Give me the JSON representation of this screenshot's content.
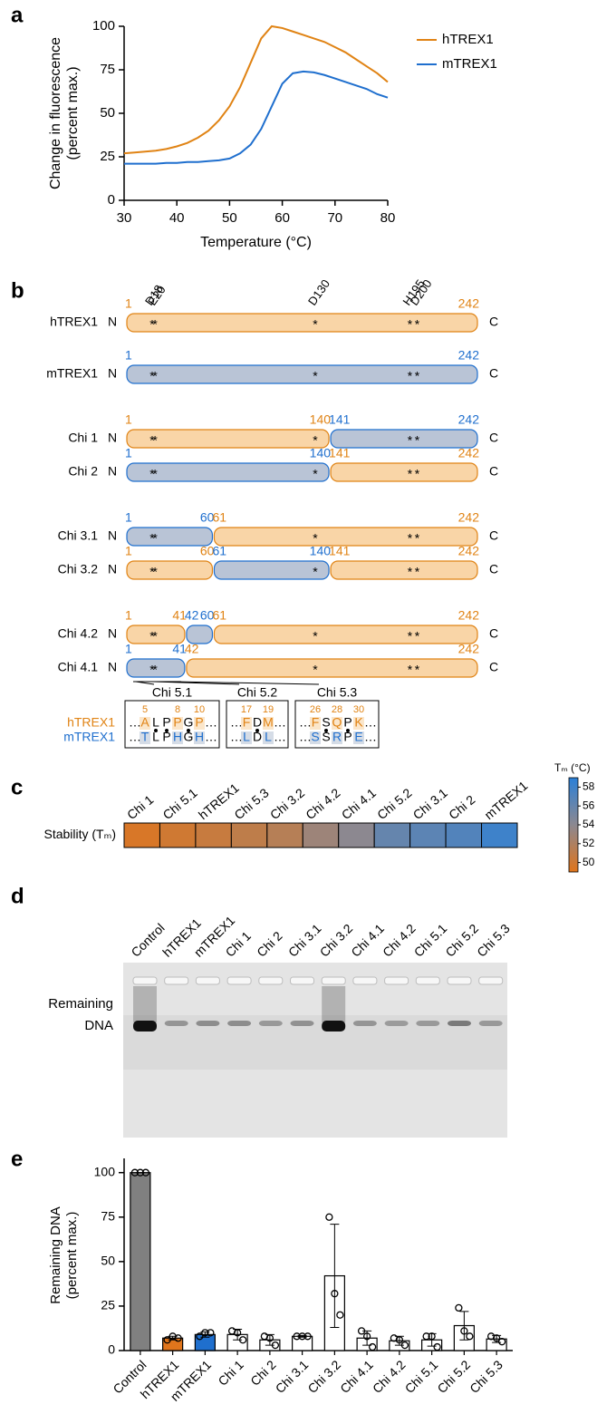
{
  "chart_data": [
    {
      "type": "line",
      "panel_label": "a",
      "xlabel": "Temperature (°C)",
      "ylabel": [
        "Change in fluorescence",
        "(percent max.)"
      ],
      "x": [
        30,
        32,
        34,
        36,
        38,
        40,
        42,
        44,
        46,
        48,
        50,
        52,
        54,
        56,
        58,
        60,
        62,
        64,
        66,
        68,
        70,
        72,
        74,
        76,
        78,
        80
      ],
      "series": [
        {
          "name": "hTREX1",
          "color": "#e08314",
          "values": [
            27,
            27.5,
            28,
            28.5,
            29.5,
            31,
            33,
            36,
            40,
            46,
            54,
            65,
            79,
            93,
            100,
            99,
            97,
            95,
            93,
            91,
            88,
            85,
            81,
            77,
            73,
            68
          ]
        },
        {
          "name": "mTREX1",
          "color": "#1f6fce",
          "values": [
            21,
            21,
            21,
            21,
            21.5,
            21.5,
            22,
            22,
            22.5,
            23,
            24,
            27,
            32,
            41,
            54,
            67,
            73,
            74,
            73.5,
            72,
            70,
            68,
            66,
            64,
            61,
            59
          ]
        }
      ],
      "xlim": [
        30,
        80
      ],
      "xticks": [
        30,
        40,
        50,
        60,
        70,
        80
      ],
      "ylim": [
        0,
        100
      ],
      "yticks": [
        0,
        25,
        50,
        75,
        100
      ],
      "legend": "upper right"
    },
    {
      "type": "heatmap",
      "panel_label": "c",
      "row_label": "Stability (Tₘ)",
      "categories": [
        "Chi 1",
        "Chi 5.1",
        "hTREX1",
        "Chi 5.3",
        "Chi 3.2",
        "Chi 4.2",
        "Chi 4.1",
        "Chi 5.2",
        "Chi 3.1",
        "Chi 2",
        "mTREX1"
      ],
      "values": [
        49.5,
        50,
        50.5,
        51,
        51.5,
        53,
        54,
        56,
        56.5,
        57,
        58
      ],
      "colorbar_title": "Tₘ (°C)",
      "clim": [
        49,
        59
      ],
      "cticks": [
        50,
        52,
        54,
        56,
        58
      ],
      "colorscale": [
        "#e0751c",
        "#8c8890",
        "#2b80d8"
      ]
    },
    {
      "type": "bar",
      "panel_label": "e",
      "ylabel": [
        "Remaining DNA",
        "(percent max.)"
      ],
      "categories": [
        "Control",
        "hTREX1",
        "mTREX1",
        "Chi 1",
        "Chi 2",
        "Chi 3.1",
        "Chi 3.2",
        "Chi 4.1",
        "Chi 4.2",
        "Chi 5.1",
        "Chi 5.2",
        "Chi 5.3"
      ],
      "values": [
        100,
        7,
        9,
        9,
        6,
        8,
        42,
        7,
        5.5,
        6,
        14,
        6.5
      ],
      "errors": [
        0,
        1,
        1.5,
        3,
        3,
        0.5,
        29,
        4,
        2.5,
        3.5,
        8,
        2
      ],
      "points": [
        [
          100,
          100,
          100
        ],
        [
          6,
          8,
          7
        ],
        [
          8,
          10,
          10
        ],
        [
          11,
          10,
          6
        ],
        [
          8,
          7,
          3
        ],
        [
          8,
          8,
          8
        ],
        [
          75,
          32,
          20
        ],
        [
          11,
          8,
          2
        ],
        [
          7,
          6,
          3
        ],
        [
          8,
          8,
          2
        ],
        [
          24,
          11,
          8
        ],
        [
          8,
          7,
          5
        ]
      ],
      "colors": [
        "#808080",
        "#e0751c",
        "#1f6fce",
        "#ffffff",
        "#ffffff",
        "#ffffff",
        "#ffffff",
        "#ffffff",
        "#ffffff",
        "#ffffff",
        "#ffffff",
        "#ffffff"
      ],
      "ylim": [
        0,
        108
      ],
      "yticks": [
        0,
        25,
        50,
        75,
        100
      ]
    }
  ],
  "diagram": {
    "panel_label": "b",
    "n_term": "N",
    "c_term": "C",
    "site_marker": "*",
    "ellipsis": "…",
    "species": [
      {
        "name": "hTREX1",
        "color": "#e08314",
        "fill": "#f9d5a7"
      },
      {
        "name": "mTREX1",
        "color": "#1f6fce",
        "fill": "#b9c4d6"
      }
    ],
    "sites": [
      {
        "label": "D18",
        "position": 18
      },
      {
        "label": "E20",
        "position": 20
      },
      {
        "label": "D130",
        "position": 130
      },
      {
        "label": "H195",
        "position": 195
      },
      {
        "label": "D200",
        "position": 200
      }
    ],
    "constructs": [
      {
        "label": "hTREX1",
        "segments": [
          {
            "species": 0,
            "start": 1,
            "end": 242
          }
        ]
      },
      {
        "label": "mTREX1",
        "segments": [
          {
            "species": 1,
            "start": 1,
            "end": 242
          }
        ]
      },
      {
        "label": "Chi 1",
        "segments": [
          {
            "species": 0,
            "start": 1,
            "end": 140
          },
          {
            "species": 1,
            "start": 141,
            "end": 242
          }
        ]
      },
      {
        "label": "Chi 2",
        "segments": [
          {
            "species": 1,
            "start": 1,
            "end": 140
          },
          {
            "species": 0,
            "start": 141,
            "end": 242
          }
        ]
      },
      {
        "label": "Chi 3.1",
        "segments": [
          {
            "species": 1,
            "start": 1,
            "end": 60
          },
          {
            "species": 0,
            "start": 61,
            "end": 242
          }
        ]
      },
      {
        "label": "Chi 3.2",
        "segments": [
          {
            "species": 0,
            "start": 1,
            "end": 60
          },
          {
            "species": 1,
            "start": 61,
            "end": 140
          },
          {
            "species": 0,
            "start": 141,
            "end": 242
          }
        ]
      },
      {
        "label": "Chi 4.2",
        "segments": [
          {
            "species": 0,
            "start": 1,
            "end": 41
          },
          {
            "species": 1,
            "start": 42,
            "end": 60
          },
          {
            "species": 0,
            "start": 61,
            "end": 242
          }
        ]
      },
      {
        "label": "Chi 4.1",
        "segments": [
          {
            "species": 1,
            "start": 1,
            "end": 41
          },
          {
            "species": 0,
            "start": 42,
            "end": 242
          }
        ]
      }
    ],
    "alignments": [
      {
        "label": "Chi 5.1",
        "start": 5,
        "number_labels": [
          5,
          8,
          10
        ],
        "rows": [
          [
            "A",
            "L",
            "P",
            "P",
            "G",
            "P"
          ],
          [
            "T",
            "L",
            "P",
            "H",
            "G",
            "H"
          ]
        ]
      },
      {
        "label": "Chi 5.2",
        "start": 17,
        "number_labels": [
          17,
          19
        ],
        "rows": [
          [
            "F",
            "D",
            "M"
          ],
          [
            "L",
            "D",
            "L"
          ]
        ]
      },
      {
        "label": "Chi 5.3",
        "start": 26,
        "number_labels": [
          26,
          28,
          30
        ],
        "rows": [
          [
            "F",
            "S",
            "Q",
            "P",
            "K"
          ],
          [
            "S",
            "S",
            "R",
            "P",
            "E"
          ]
        ]
      }
    ]
  },
  "gel": {
    "panel_label": "d",
    "band_label": [
      "Remaining",
      "DNA"
    ],
    "lanes": [
      "Control",
      "hTREX1",
      "mTREX1",
      "Chi 1",
      "Chi 2",
      "Chi 3.1",
      "Chi 3.2",
      "Chi 4.1",
      "Chi 4.2",
      "Chi 5.1",
      "Chi 5.2",
      "Chi 5.3"
    ]
  }
}
